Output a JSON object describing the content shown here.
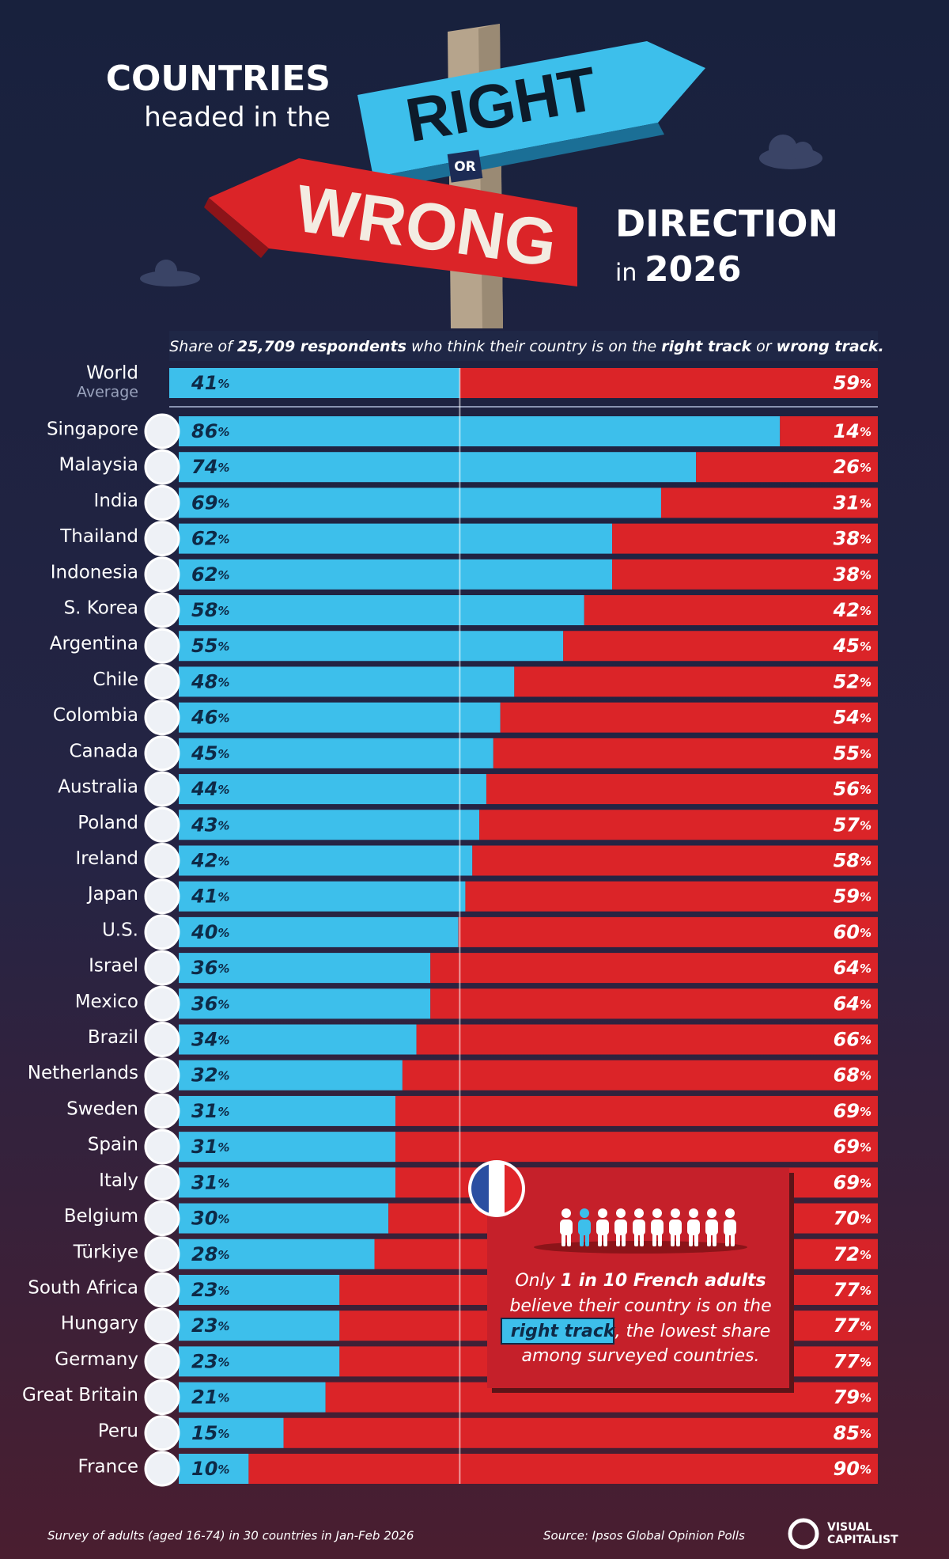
{
  "chart_data": {
    "type": "bar",
    "orientation": "horizontal",
    "stacked": true,
    "title": {
      "line1": "COUNTRIES",
      "line2": "headed in the",
      "right": "RIGHT",
      "or": "OR",
      "wrong": "WRONG",
      "line3": "DIRECTION",
      "line4a": "in",
      "line4b": "2026"
    },
    "subtitle": [
      "Share of ",
      "25,709 respondents",
      " who think their country is on the ",
      "right track",
      " or ",
      "wrong track."
    ],
    "average": {
      "label": "World",
      "sublabel": "Average",
      "values": [
        41,
        59
      ],
      "value_labels": [
        "41%",
        "59%"
      ]
    },
    "categories": [
      "Singapore",
      "Malaysia",
      "India",
      "Thailand",
      "Indonesia",
      "S. Korea",
      "Argentina",
      "Chile",
      "Colombia",
      "Canada",
      "Australia",
      "Poland",
      "Ireland",
      "Japan",
      "U.S.",
      "Israel",
      "Mexico",
      "Brazil",
      "Netherlands",
      "Sweden",
      "Spain",
      "Italy",
      "Belgium",
      "Türkiye",
      "South Africa",
      "Hungary",
      "Germany",
      "Great Britain",
      "Peru",
      "France"
    ],
    "series": [
      {
        "color": "#3dbfeb",
        "values": [
          86,
          74,
          69,
          62,
          62,
          58,
          55,
          48,
          46,
          45,
          44,
          43,
          42,
          41,
          40,
          36,
          36,
          34,
          32,
          31,
          31,
          31,
          30,
          28,
          23,
          23,
          23,
          21,
          15,
          10
        ],
        "value_labels": [
          "86%",
          "74%",
          "69%",
          "62%",
          "62%",
          "58%",
          "55%",
          "48%",
          "46%",
          "45%",
          "44%",
          "43%",
          "42%",
          "41%",
          "40%",
          "36%",
          "36%",
          "34%",
          "32%",
          "31%",
          "31%",
          "31%",
          "30%",
          "28%",
          "23%",
          "23%",
          "23%",
          "21%",
          "15%",
          "10%"
        ]
      },
      {
        "color": "#db2428",
        "values": [
          14,
          26,
          31,
          38,
          38,
          42,
          45,
          52,
          54,
          55,
          56,
          57,
          58,
          59,
          60,
          64,
          64,
          66,
          68,
          69,
          69,
          69,
          70,
          72,
          77,
          77,
          77,
          79,
          85,
          90
        ],
        "value_labels": [
          "14%",
          "26%",
          "31%",
          "38%",
          "38%",
          "42%",
          "45%",
          "52%",
          "54%",
          "55%",
          "56%",
          "57%",
          "58%",
          "59%",
          "60%",
          "64%",
          "64%",
          "66%",
          "68%",
          "69%",
          "69%",
          "69%",
          "70%",
          "72%",
          "77%",
          "77%",
          "77%",
          "79%",
          "85%",
          "90%"
        ]
      }
    ],
    "xlim": [
      0,
      100
    ],
    "grid": false,
    "callout": {
      "lines": [
        [
          "Only ",
          "1 in 10 French adults"
        ],
        [
          "believe their country is on the"
        ],
        [
          "right track",
          ", the lowest share"
        ],
        [
          "among surveyed countries."
        ]
      ]
    },
    "note": "Survey of adults (aged 16-74) in 30 countries in Jan-Feb 2026",
    "source": "Source: Ipsos Global Opinion Polls",
    "logo": [
      "VISUAL",
      "CAPITALIST"
    ]
  }
}
